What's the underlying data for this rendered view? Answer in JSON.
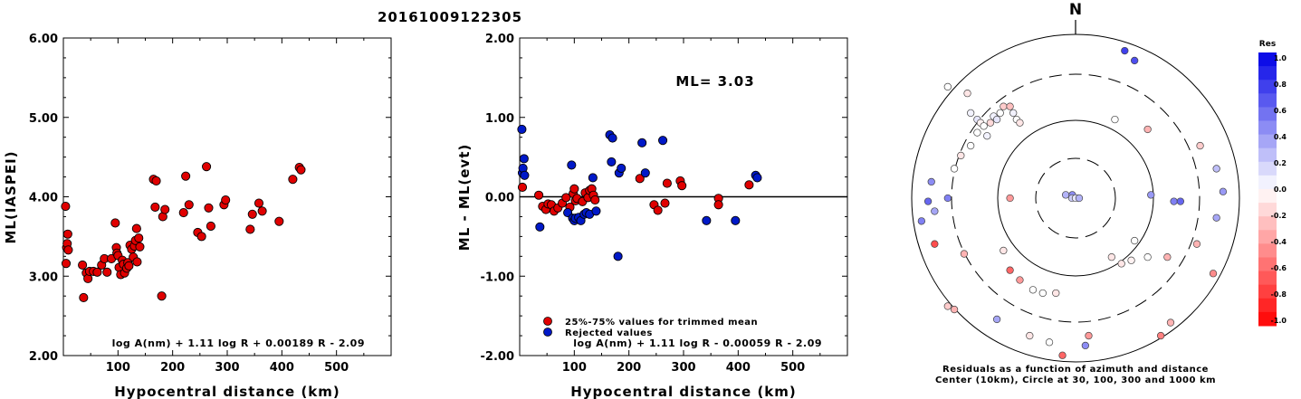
{
  "title": "20161009122305",
  "colors": {
    "red": "#e00000",
    "blue": "#0019c8",
    "axis": "#000000"
  },
  "chart_data": [
    {
      "id": "ml-vs-distance",
      "type": "scatter",
      "xlabel": "Hypocentral distance (km)",
      "ylabel": "ML(IASPEI)",
      "xlim": [
        0,
        600
      ],
      "ylim": [
        2.0,
        6.0
      ],
      "xticks": [
        "100",
        "200",
        "300",
        "400",
        "500"
      ],
      "yticks": [
        "2.00",
        "3.00",
        "4.00",
        "5.00",
        "6.00"
      ],
      "formula": "log A(nm) + 1.11 log R + 0.00189 R - 2.09",
      "series": [
        {
          "color": "red",
          "points": [
            [
              4,
              3.88
            ],
            [
              5,
              3.16
            ],
            [
              6,
              3.36
            ],
            [
              7,
              3.41
            ],
            [
              8,
              3.53
            ],
            [
              9,
              3.33
            ],
            [
              35,
              3.14
            ],
            [
              37,
              2.73
            ],
            [
              42,
              3.04
            ],
            [
              45,
              2.97
            ],
            [
              48,
              3.06
            ],
            [
              55,
              3.06
            ],
            [
              62,
              3.05
            ],
            [
              70,
              3.14
            ],
            [
              75,
              3.22
            ],
            [
              80,
              3.05
            ],
            [
              88,
              3.22
            ],
            [
              95,
              3.67
            ],
            [
              97,
              3.36
            ],
            [
              98,
              3.29
            ],
            [
              100,
              3.26
            ],
            [
              102,
              3.11
            ],
            [
              105,
              3.02
            ],
            [
              108,
              3.2
            ],
            [
              110,
              3.15
            ],
            [
              112,
              3.04
            ],
            [
              116,
              3.1
            ],
            [
              118,
              3.17
            ],
            [
              120,
              3.13
            ],
            [
              122,
              3.39
            ],
            [
              125,
              3.34
            ],
            [
              128,
              3.24
            ],
            [
              130,
              3.38
            ],
            [
              132,
              3.45
            ],
            [
              134,
              3.6
            ],
            [
              135,
              3.18
            ],
            [
              138,
              3.48
            ],
            [
              140,
              3.37
            ],
            [
              165,
              4.22
            ],
            [
              168,
              3.87
            ],
            [
              170,
              4.2
            ],
            [
              180,
              2.75
            ],
            [
              182,
              3.75
            ],
            [
              186,
              3.84
            ],
            [
              220,
              3.8
            ],
            [
              224,
              4.26
            ],
            [
              230,
              3.9
            ],
            [
              246,
              3.55
            ],
            [
              253,
              3.5
            ],
            [
              262,
              4.38
            ],
            [
              266,
              3.86
            ],
            [
              270,
              3.63
            ],
            [
              294,
              3.9
            ],
            [
              297,
              3.96
            ],
            [
              342,
              3.59
            ],
            [
              346,
              3.78
            ],
            [
              358,
              3.92
            ],
            [
              364,
              3.82
            ],
            [
              395,
              3.69
            ],
            [
              420,
              4.22
            ],
            [
              432,
              4.37
            ],
            [
              435,
              4.34
            ]
          ]
        }
      ]
    },
    {
      "id": "residual-vs-distance",
      "type": "scatter",
      "xlabel": "Hypocentral distance (km)",
      "ylabel": "ML - ML(evt)",
      "xlim": [
        0,
        600
      ],
      "ylim": [
        -2.0,
        2.0
      ],
      "xticks": [
        "100",
        "200",
        "300",
        "400",
        "500"
      ],
      "yticks": [
        "-2.00",
        "-1.00",
        "0.00",
        "1.00",
        "2.00"
      ],
      "annotation": "ML= 3.03",
      "formula": "log A(nm) + 1.11 log R - 0.00059 R - 2.09",
      "legend": [
        {
          "label": "25%-75% values for trimmed mean",
          "color": "red"
        },
        {
          "label": "Rejected values",
          "color": "blue"
        }
      ],
      "series": [
        {
          "name": "25%-75% values for trimmed mean",
          "color": "red",
          "points": [
            [
              5,
              0.12
            ],
            [
              35,
              0.02
            ],
            [
              42,
              -0.12
            ],
            [
              48,
              -0.16
            ],
            [
              52,
              -0.09
            ],
            [
              58,
              -0.1
            ],
            [
              63,
              -0.18
            ],
            [
              70,
              -0.14
            ],
            [
              78,
              -0.08
            ],
            [
              85,
              -0.01
            ],
            [
              92,
              -0.13
            ],
            [
              98,
              0.04
            ],
            [
              100,
              0.1
            ],
            [
              102,
              -0.05
            ],
            [
              105,
              -0.02
            ],
            [
              115,
              -0.06
            ],
            [
              120,
              0.05
            ],
            [
              125,
              -0.01
            ],
            [
              128,
              0.08
            ],
            [
              132,
              0.1
            ],
            [
              135,
              0.02
            ],
            [
              138,
              -0.04
            ],
            [
              220,
              0.23
            ],
            [
              246,
              -0.1
            ],
            [
              253,
              -0.17
            ],
            [
              270,
              0.17
            ],
            [
              266,
              -0.08
            ],
            [
              294,
              0.2
            ],
            [
              297,
              0.14
            ],
            [
              364,
              -0.02
            ],
            [
              364,
              -0.1
            ],
            [
              420,
              0.15
            ]
          ]
        },
        {
          "name": "Rejected values",
          "color": "blue",
          "points": [
            [
              4,
              0.85
            ],
            [
              5,
              0.3
            ],
            [
              6,
              0.36
            ],
            [
              8,
              0.48
            ],
            [
              9,
              0.27
            ],
            [
              37,
              -0.38
            ],
            [
              88,
              -0.2
            ],
            [
              95,
              0.4
            ],
            [
              97,
              -0.27
            ],
            [
              100,
              -0.3
            ],
            [
              102,
              -0.27
            ],
            [
              108,
              -0.26
            ],
            [
              112,
              -0.3
            ],
            [
              118,
              -0.22
            ],
            [
              122,
              -0.2
            ],
            [
              128,
              -0.22
            ],
            [
              134,
              0.24
            ],
            [
              140,
              -0.18
            ],
            [
              165,
              0.78
            ],
            [
              168,
              0.44
            ],
            [
              170,
              0.74
            ],
            [
              180,
              -0.75
            ],
            [
              182,
              0.3
            ],
            [
              186,
              0.36
            ],
            [
              224,
              0.68
            ],
            [
              230,
              0.3
            ],
            [
              262,
              0.71
            ],
            [
              342,
              -0.3
            ],
            [
              395,
              -0.3
            ],
            [
              432,
              0.27
            ],
            [
              435,
              0.24
            ]
          ]
        }
      ]
    },
    {
      "id": "azimuth-residuals",
      "type": "scatter",
      "north_label": "N",
      "caption_line1": "Residuals as a function of azimuth and distance",
      "caption_line2": "Center (10km), Circle at 30, 100, 300 and 1000 km",
      "colorbar": {
        "title": "Res",
        "ticks": [
          "1.0",
          "0.8",
          "0.6",
          "0.4",
          "0.2",
          "0.0",
          "-0.2",
          "-0.4",
          "-0.6",
          "-0.8",
          "-1.0"
        ],
        "range": [
          -1.0,
          1.0
        ]
      },
      "points_res": [
        [
          0.65,
          0.95,
          0.75
        ],
        [
          0.68,
          0.92,
          0.7
        ],
        [
          0.11,
          0.84,
          0.0
        ],
        [
          0.17,
          0.82,
          -0.1
        ],
        [
          0.18,
          0.76,
          0.05
        ],
        [
          0.2,
          0.74,
          0.1
        ],
        [
          0.21,
          0.73,
          -0.05
        ],
        [
          0.22,
          0.72,
          0.0
        ],
        [
          0.24,
          0.73,
          -0.15
        ],
        [
          0.25,
          0.75,
          0.05
        ],
        [
          0.26,
          0.74,
          0.1
        ],
        [
          0.27,
          0.76,
          0.0
        ],
        [
          0.28,
          0.78,
          -0.2
        ],
        [
          0.3,
          0.78,
          -0.25
        ],
        [
          0.31,
          0.76,
          0.05
        ],
        [
          0.32,
          0.74,
          0.0
        ],
        [
          0.33,
          0.73,
          -0.1
        ],
        [
          0.2,
          0.7,
          0.0
        ],
        [
          0.23,
          0.69,
          0.05
        ],
        [
          0.18,
          0.66,
          0.0
        ],
        [
          0.15,
          0.63,
          -0.1
        ],
        [
          0.13,
          0.59,
          0.0
        ],
        [
          0.62,
          0.74,
          0.0
        ],
        [
          0.72,
          0.71,
          -0.3
        ],
        [
          0.88,
          0.66,
          -0.2
        ],
        [
          0.06,
          0.55,
          0.45
        ],
        [
          0.05,
          0.49,
          0.6
        ],
        [
          0.03,
          0.43,
          0.5
        ],
        [
          0.07,
          0.46,
          0.35
        ],
        [
          0.11,
          0.5,
          0.5
        ],
        [
          0.3,
          0.5,
          -0.4
        ],
        [
          0.47,
          0.51,
          0.3
        ],
        [
          0.49,
          0.51,
          0.45
        ],
        [
          0.51,
          0.5,
          0.55
        ],
        [
          0.73,
          0.51,
          0.4
        ],
        [
          0.8,
          0.49,
          0.5
        ],
        [
          0.82,
          0.49,
          0.6
        ],
        [
          0.93,
          0.44,
          0.35
        ],
        [
          0.95,
          0.52,
          0.4
        ],
        [
          0.93,
          0.59,
          0.25
        ],
        [
          0.07,
          0.36,
          -0.7
        ],
        [
          0.16,
          0.33,
          -0.3
        ],
        [
          0.28,
          0.34,
          -0.1
        ],
        [
          0.3,
          0.28,
          -0.6
        ],
        [
          0.33,
          0.25,
          -0.4
        ],
        [
          0.37,
          0.22,
          0.0
        ],
        [
          0.4,
          0.21,
          0.0
        ],
        [
          0.44,
          0.21,
          -0.1
        ],
        [
          0.61,
          0.32,
          -0.1
        ],
        [
          0.64,
          0.3,
          -0.1
        ],
        [
          0.67,
          0.31,
          -0.05
        ],
        [
          0.68,
          0.37,
          0.0
        ],
        [
          0.72,
          0.32,
          0.0
        ],
        [
          0.78,
          0.32,
          -0.3
        ],
        [
          0.87,
          0.36,
          -0.3
        ],
        [
          0.92,
          0.27,
          -0.45
        ],
        [
          0.11,
          0.17,
          -0.2
        ],
        [
          0.13,
          0.16,
          -0.3
        ],
        [
          0.26,
          0.13,
          0.35
        ],
        [
          0.36,
          0.08,
          -0.1
        ],
        [
          0.42,
          0.06,
          0.0
        ],
        [
          0.53,
          0.05,
          0.45
        ],
        [
          0.54,
          0.08,
          -0.4
        ],
        [
          0.79,
          0.12,
          -0.3
        ],
        [
          0.76,
          0.08,
          -0.5
        ],
        [
          0.46,
          0.02,
          -0.6
        ]
      ]
    }
  ]
}
